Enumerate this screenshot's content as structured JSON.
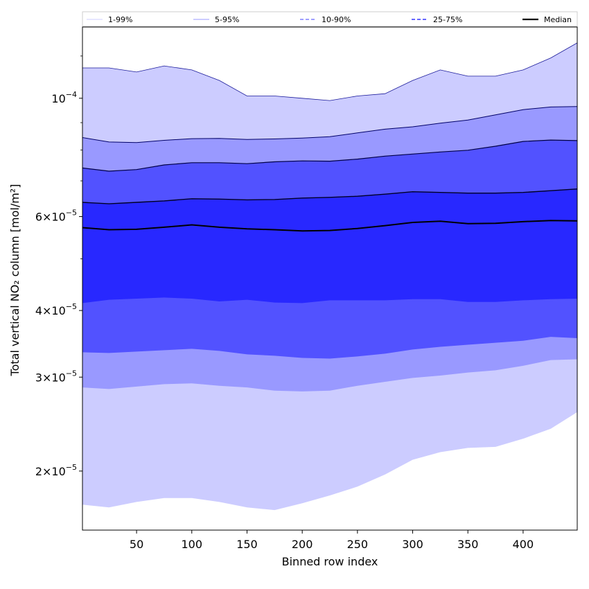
{
  "chart_data": {
    "type": "area",
    "xlabel": "Binned row index",
    "ylabel": "Total vertical NO₂ column [mol/m²]",
    "yscale": "log",
    "xlim": [
      1,
      449
    ],
    "ylim": [
      1.55e-05,
      0.000136
    ],
    "grid": false,
    "legend_position": "top",
    "x_ticks": [
      50,
      100,
      150,
      200,
      250,
      300,
      350,
      400
    ],
    "y_ticks": [
      {
        "value": 2e-05,
        "mantissa": "2",
        "base": "10",
        "exp": "−5"
      },
      {
        "value": 3e-05,
        "mantissa": "3",
        "base": "10",
        "exp": "−5"
      },
      {
        "value": 4e-05,
        "mantissa": "4",
        "base": "10",
        "exp": "−5"
      },
      {
        "value": 6e-05,
        "mantissa": "6",
        "base": "10",
        "exp": "−5"
      },
      {
        "value": 0.0001,
        "mantissa": "",
        "base": "10",
        "exp": "−4"
      }
    ],
    "legend": [
      {
        "label": "1-99%",
        "color": "#ccccff"
      },
      {
        "label": "5-95%",
        "color": "#9999ff"
      },
      {
        "label": "10-90%",
        "color": "#6666ff"
      },
      {
        "label": "25-75%",
        "color": "#3333ff"
      },
      {
        "label": "Median",
        "color": "#000000"
      }
    ],
    "x": [
      1,
      25,
      50,
      75,
      100,
      125,
      150,
      175,
      200,
      225,
      250,
      275,
      300,
      325,
      350,
      375,
      400,
      425,
      449
    ],
    "bands": [
      {
        "name": "1-99%",
        "fill": "#ccccff",
        "lower": [
          1.73e-05,
          1.71e-05,
          1.75e-05,
          1.78e-05,
          1.78e-05,
          1.75e-05,
          1.71e-05,
          1.69e-05,
          1.74e-05,
          1.8e-05,
          1.87e-05,
          1.97e-05,
          2.1e-05,
          2.17e-05,
          2.21e-05,
          2.22e-05,
          2.3e-05,
          2.4e-05,
          2.58e-05
        ],
        "upper": [
          0.000114,
          0.000114,
          0.000112,
          0.000115,
          0.000113,
          0.000108,
          0.000101,
          0.000101,
          0.0001,
          9.9e-05,
          0.000101,
          0.000102,
          0.000108,
          0.000113,
          0.00011,
          0.00011,
          0.000113,
          0.000119,
          0.000127
        ]
      },
      {
        "name": "5-95%",
        "fill": "#9999ff",
        "lower": [
          2.87e-05,
          2.85e-05,
          2.88e-05,
          2.91e-05,
          2.92e-05,
          2.89e-05,
          2.87e-05,
          2.83e-05,
          2.82e-05,
          2.83e-05,
          2.89e-05,
          2.94e-05,
          2.99e-05,
          3.02e-05,
          3.06e-05,
          3.09e-05,
          3.15e-05,
          3.23e-05,
          3.24e-05
        ]
      },
      {
        "name": "10-90%",
        "fill": "#5252ff",
        "lower": [
          3.34e-05,
          3.33e-05,
          3.35e-05,
          3.37e-05,
          3.39e-05,
          3.36e-05,
          3.31e-05,
          3.29e-05,
          3.26e-05,
          3.25e-05,
          3.28e-05,
          3.32e-05,
          3.38e-05,
          3.42e-05,
          3.45e-05,
          3.48e-05,
          3.51e-05,
          3.57e-05,
          3.55e-05
        ],
        "upper": [
          7.4e-05,
          7.3e-05,
          7.35e-05,
          7.5e-05,
          7.57e-05,
          7.57e-05,
          7.54e-05,
          7.6e-05,
          7.63e-05,
          7.62e-05,
          7.69e-05,
          7.79e-05,
          7.86e-05,
          7.93e-05,
          7.99e-05,
          8.13e-05,
          8.3e-05,
          8.35e-05,
          8.33e-05
        ]
      },
      {
        "name": "25-75%",
        "fill": "#2828ff",
        "lower": [
          4.13e-05,
          4.19e-05,
          4.21e-05,
          4.23e-05,
          4.21e-05,
          4.16e-05,
          4.19e-05,
          4.14e-05,
          4.13e-05,
          4.18e-05,
          4.18e-05,
          4.18e-05,
          4.2e-05,
          4.2e-05,
          4.15e-05,
          4.15e-05,
          4.18e-05,
          4.2e-05,
          4.21e-05
        ],
        "upper": [
          6.38e-05,
          6.34e-05,
          6.38e-05,
          6.42e-05,
          6.48e-05,
          6.47e-05,
          6.45e-05,
          6.46e-05,
          6.5e-05,
          6.52e-05,
          6.55e-05,
          6.61e-05,
          6.68e-05,
          6.66e-05,
          6.64e-05,
          6.64e-05,
          6.66e-05,
          6.71e-05,
          6.76e-05
        ]
      }
    ],
    "upper_only": [
      {
        "name": "5-95%",
        "upper": [
          8.44e-05,
          8.28e-05,
          8.26e-05,
          8.34e-05,
          8.4e-05,
          8.41e-05,
          8.37e-05,
          8.39e-05,
          8.42e-05,
          8.47e-05,
          8.61e-05,
          8.75e-05,
          8.84e-05,
          8.98e-05,
          9.1e-05,
          9.31e-05,
          9.52e-05,
          9.63e-05,
          9.65e-05
        ]
      }
    ],
    "series": [
      {
        "name": "Median",
        "color": "#000000",
        "values": [
          5.72e-05,
          5.67e-05,
          5.68e-05,
          5.73e-05,
          5.79e-05,
          5.73e-05,
          5.69e-05,
          5.67e-05,
          5.64e-05,
          5.65e-05,
          5.7e-05,
          5.77e-05,
          5.85e-05,
          5.88e-05,
          5.82e-05,
          5.83e-05,
          5.87e-05,
          5.9e-05,
          5.89e-05
        ]
      }
    ]
  }
}
